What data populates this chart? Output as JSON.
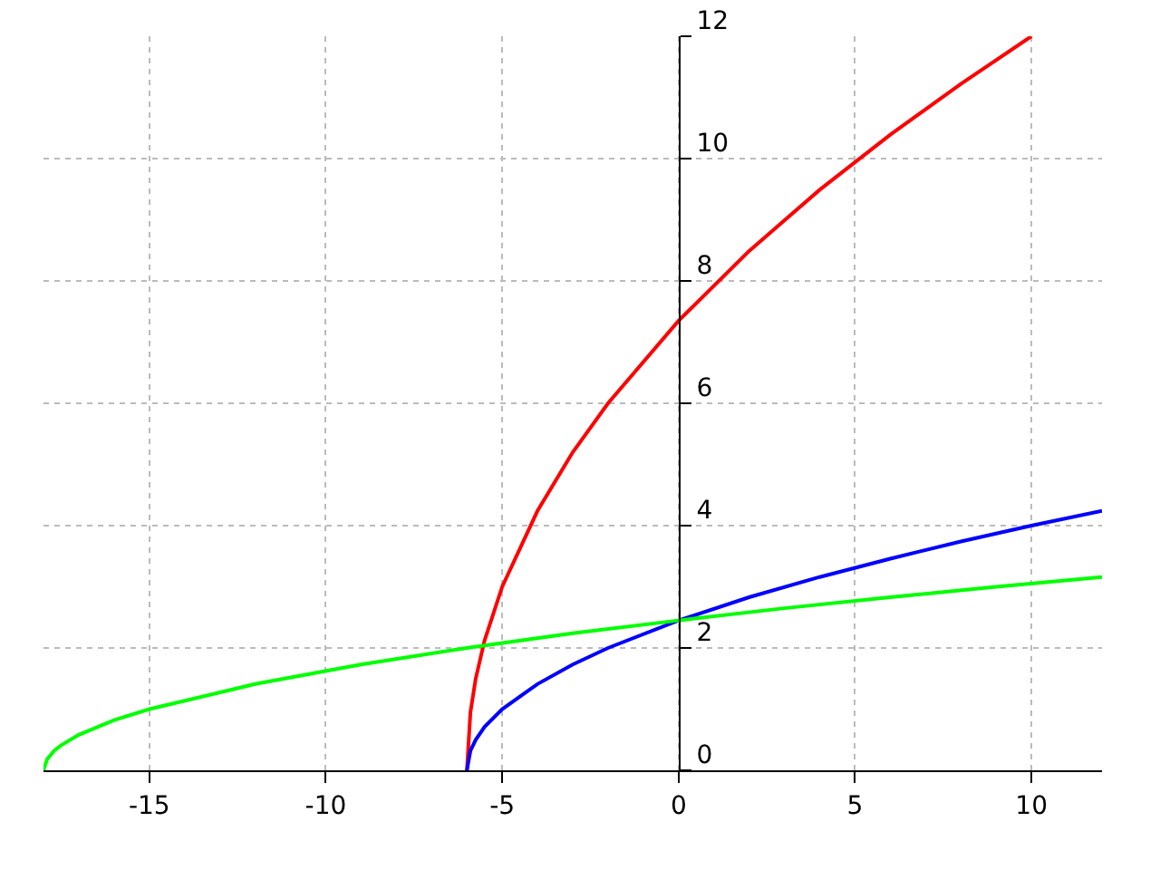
{
  "chart_data": {
    "type": "line",
    "xlim": [
      -18,
      12
    ],
    "ylim": [
      0,
      12
    ],
    "xticks": [
      -15,
      -10,
      -5,
      0,
      5,
      10
    ],
    "yticks": [
      0,
      2,
      4,
      6,
      8,
      10,
      12
    ],
    "grid": true,
    "marker": "none",
    "line_style": "solid",
    "series": [
      {
        "color": "#ff0000",
        "x": [
          -6,
          -5.9,
          -5.75,
          -5.5,
          -5,
          -4,
          -3,
          -2,
          0,
          2,
          4,
          6,
          8,
          10
        ],
        "values": [
          0,
          0.95,
          1.5,
          2.12,
          3,
          4.24,
          5.2,
          6,
          7.35,
          8.49,
          9.49,
          10.39,
          11.22,
          12
        ]
      },
      {
        "color": "#0000ff",
        "x": [
          -6,
          -5.9,
          -5.75,
          -5.5,
          -5,
          -4,
          -3,
          -2,
          0,
          2,
          4,
          6,
          8,
          10,
          12
        ],
        "values": [
          0,
          0.32,
          0.5,
          0.71,
          1,
          1.41,
          1.73,
          2,
          2.45,
          2.83,
          3.16,
          3.46,
          3.74,
          4,
          4.24
        ]
      },
      {
        "color": "#00ff00",
        "x": [
          -18,
          -17.9,
          -17.7,
          -17.5,
          -17,
          -16,
          -15,
          -12,
          -9,
          -6,
          -3,
          0,
          3,
          6,
          9,
          12
        ],
        "values": [
          0,
          0.18,
          0.32,
          0.41,
          0.58,
          0.82,
          1,
          1.41,
          1.73,
          2,
          2.24,
          2.45,
          2.65,
          2.83,
          3,
          3.16
        ]
      }
    ]
  }
}
